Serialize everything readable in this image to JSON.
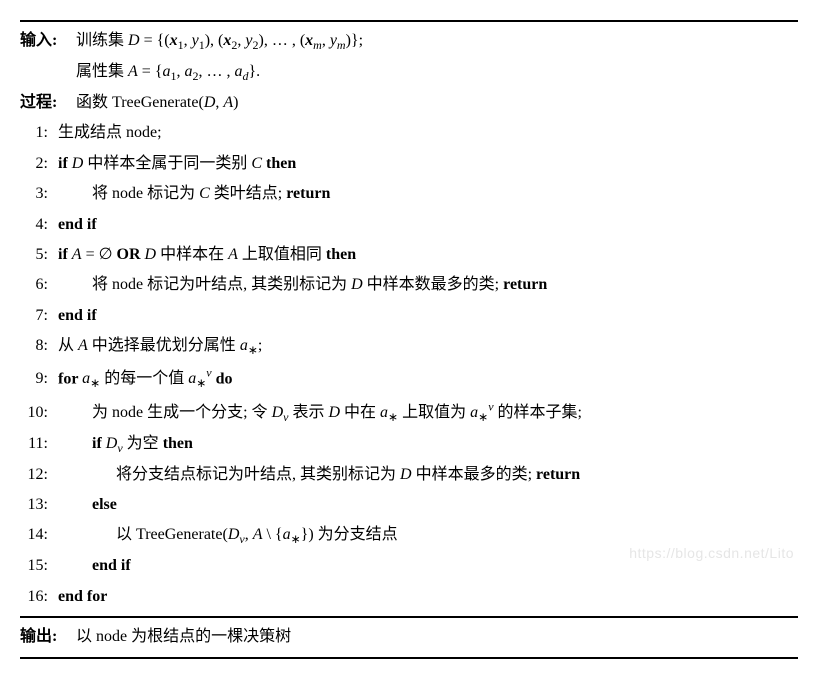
{
  "header": {
    "input_label": "输入:",
    "input_line1": "训练集 D = {(𝒙₁, y₁), (𝒙₂, y₂), … , (𝒙ₘ, yₘ)};",
    "input_line2": "属性集 A = {a₁, a₂, … , a_d}.",
    "process_label": "过程:",
    "process_text": "函数 TreeGenerate(D, A)"
  },
  "steps": {
    "s1": "生成结点 node;",
    "s2a": "if ",
    "s2b": "D 中样本全属于同一类别 C",
    "s2c": " then",
    "s3a": "将 node 标记为 C 类叶结点; ",
    "s3b": "return",
    "s4": "end if",
    "s5a": "if ",
    "s5b1": "A = ∅",
    "s5or": " OR ",
    "s5b2": "D 中样本在 A 上取值相同",
    "s5c": " then",
    "s6a": "将 node 标记为叶结点, 其类别标记为 D 中样本数最多的类; ",
    "s6b": "return",
    "s7": "end if",
    "s8": "从 A 中选择最优划分属性 a∗;",
    "s9a": "for ",
    "s9b": "a∗ 的每一个值 a∗ᵛ",
    "s9c": " do",
    "s10": "为 node 生成一个分支; 令 Dᵥ 表示 D 中在 a∗ 上取值为 a∗ᵛ 的样本子集;",
    "s11a": "if ",
    "s11b": "Dᵥ 为空",
    "s11c": " then",
    "s12a": "将分支结点标记为叶结点, 其类别标记为 D 中样本最多的类; ",
    "s12b": "return",
    "s13": "else",
    "s14": "以 TreeGenerate(Dᵥ, A \\ {a∗}) 为分支结点",
    "s15": "end if",
    "s16": "end for"
  },
  "footer": {
    "output_label": "输出:",
    "output_text": "以 node 为根结点的一棵决策树"
  },
  "watermark": "https://blog.csdn.net/Lito"
}
